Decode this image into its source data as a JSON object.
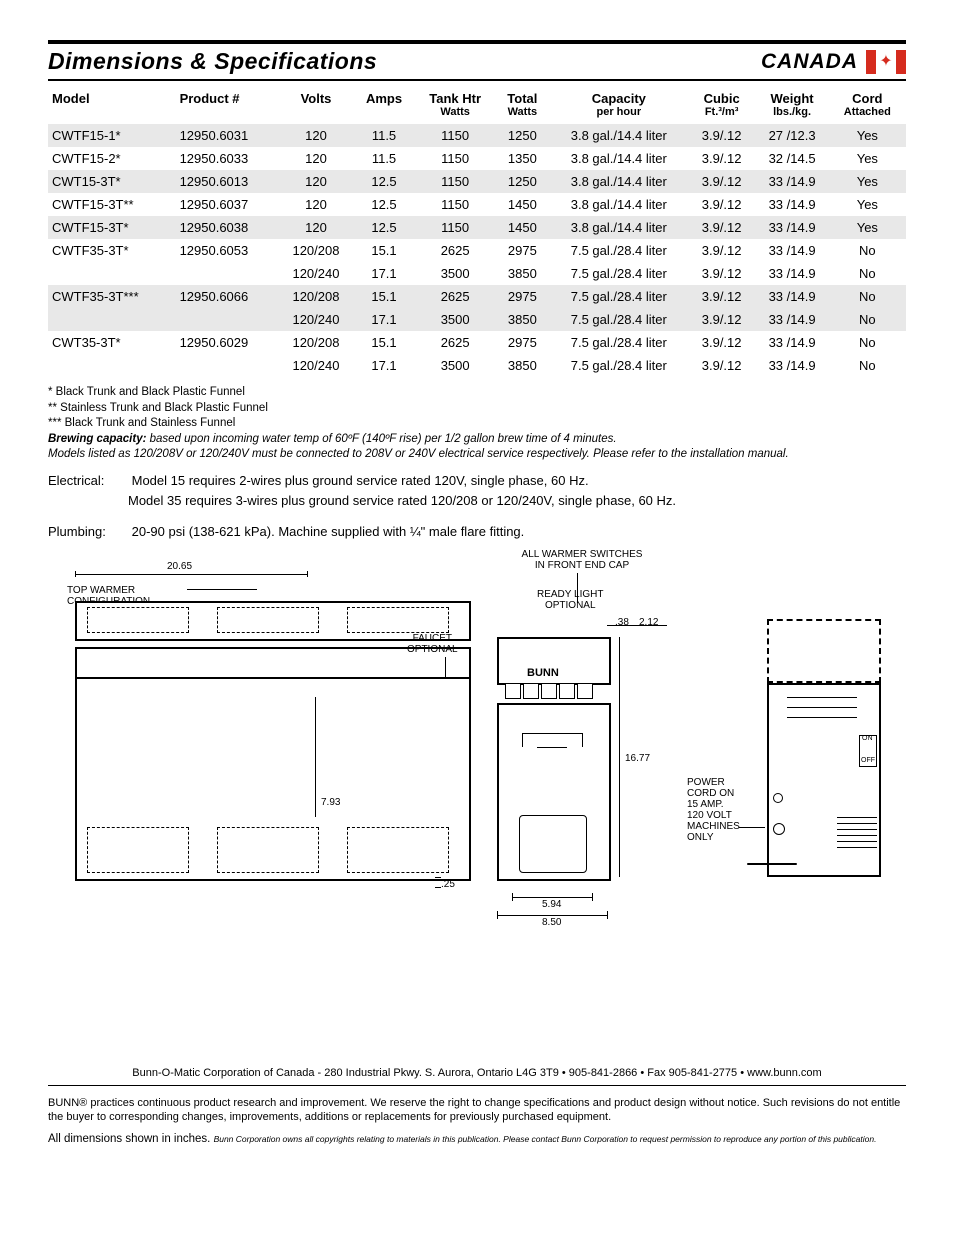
{
  "header": {
    "title": "Dimensions & Specifications",
    "region": "CANADA"
  },
  "table": {
    "columns": [
      {
        "key": "model",
        "label": "Model",
        "sub": "",
        "align": "left"
      },
      {
        "key": "product",
        "label": "Product #",
        "sub": "",
        "align": "left"
      },
      {
        "key": "volts",
        "label": "Volts",
        "sub": "",
        "align": "center"
      },
      {
        "key": "amps",
        "label": "Amps",
        "sub": "",
        "align": "center"
      },
      {
        "key": "tankhtr",
        "label": "Tank Htr",
        "sub": "Watts",
        "align": "center"
      },
      {
        "key": "total",
        "label": "Total",
        "sub": "Watts",
        "align": "center"
      },
      {
        "key": "capacity",
        "label": "Capacity",
        "sub": "per hour",
        "align": "center"
      },
      {
        "key": "cubic",
        "label": "Cubic",
        "sub": "Ft.³/m³",
        "align": "center"
      },
      {
        "key": "weight",
        "label": "Weight",
        "sub": "lbs./kg.",
        "align": "center"
      },
      {
        "key": "cord",
        "label": "Cord",
        "sub": "Attached",
        "align": "center"
      }
    ],
    "rows": [
      {
        "shade": true,
        "cells": [
          "CWTF15-1*",
          "12950.6031",
          "120",
          "11.5",
          "1150",
          "1250",
          "3.8 gal./14.4 liter",
          "3.9/.12",
          "27 /12.3",
          "Yes"
        ]
      },
      {
        "shade": false,
        "cells": [
          "CWTF15-2*",
          "12950.6033",
          "120",
          "11.5",
          "1150",
          "1350",
          "3.8 gal./14.4 liter",
          "3.9/.12",
          "32 /14.5",
          "Yes"
        ]
      },
      {
        "shade": true,
        "cells": [
          "CWT15-3T*",
          "12950.6013",
          "120",
          "12.5",
          "1150",
          "1250",
          "3.8 gal./14.4 liter",
          "3.9/.12",
          "33 /14.9",
          "Yes"
        ]
      },
      {
        "shade": false,
        "cells": [
          "CWTF15-3T**",
          "12950.6037",
          "120",
          "12.5",
          "1150",
          "1450",
          "3.8 gal./14.4 liter",
          "3.9/.12",
          "33 /14.9",
          "Yes"
        ]
      },
      {
        "shade": true,
        "cells": [
          "CWTF15-3T*",
          "12950.6038",
          "120",
          "12.5",
          "1150",
          "1450",
          "3.8 gal./14.4 liter",
          "3.9/.12",
          "33 /14.9",
          "Yes"
        ]
      },
      {
        "shade": false,
        "cells": [
          "CWTF35-3T*",
          "12950.6053",
          "120/208",
          "15.1",
          "2625",
          "2975",
          "7.5 gal./28.4 liter",
          "3.9/.12",
          "33 /14.9",
          "No"
        ]
      },
      {
        "shade": false,
        "cells": [
          "",
          "",
          "120/240",
          "17.1",
          "3500",
          "3850",
          "7.5 gal./28.4 liter",
          "3.9/.12",
          "33 /14.9",
          "No"
        ]
      },
      {
        "shade": true,
        "cells": [
          "CWTF35-3T***",
          "12950.6066",
          "120/208",
          "15.1",
          "2625",
          "2975",
          "7.5 gal./28.4 liter",
          "3.9/.12",
          "33 /14.9",
          "No"
        ]
      },
      {
        "shade": true,
        "cells": [
          "",
          "",
          "120/240",
          "17.1",
          "3500",
          "3850",
          "7.5 gal./28.4 liter",
          "3.9/.12",
          "33 /14.9",
          "No"
        ]
      },
      {
        "shade": false,
        "cells": [
          "CWT35-3T*",
          "12950.6029",
          "120/208",
          "15.1",
          "2625",
          "2975",
          "7.5 gal./28.4 liter",
          "3.9/.12",
          "33 /14.9",
          "No"
        ]
      },
      {
        "shade": false,
        "cells": [
          "",
          "",
          "120/240",
          "17.1",
          "3500",
          "3850",
          "7.5 gal./28.4 liter",
          "3.9/.12",
          "33 /14.9",
          "No"
        ]
      }
    ]
  },
  "footnotes": {
    "star1": "* Black Trunk and Black Plastic Funnel",
    "star2": "** Stainless Trunk and Black Plastic Funnel",
    "star3": "*** Black Trunk and Stainless Funnel",
    "brew_label": "Brewing capacity:",
    "brew_text": "based upon incoming water temp of 60ºF (140ºF rise) per 1/2 gallon brew time of 4 minutes.",
    "models_note": "Models listed as 120/208V or 120/240V must be connected to 208V or 240V electrical service respectively. Please refer to the installation manual."
  },
  "body": {
    "electrical_label": "Electrical:",
    "electrical_l1": "Model 15 requires 2-wires plus ground service rated 120V, single phase, 60 Hz.",
    "electrical_l2": "Model 35 requires 3-wires plus ground service rated 120/208 or 120/240V, single phase, 60 Hz.",
    "plumbing_label": "Plumbing:",
    "plumbing_text": "20-90 psi (138-621 kPa). Machine supplied with ¼\" male flare fitting."
  },
  "diagram": {
    "top_warmer": "TOP WARMER CONFIGURATION",
    "faucet": "FAUCET\nOPTIONAL",
    "all_warmer": "ALL WARMER SWITCHES\nIN FRONT END CAP",
    "ready": "READY LIGHT\nOPTIONAL",
    "bunn": "BUNN",
    "power_cord": "POWER\nCORD ON\n15 AMP.\n120 VOLT\nMACHINES\nONLY",
    "d2065": "20.65",
    "d793": "7.93",
    "d25": ".25",
    "d594": "5.94",
    "d850": "8.50",
    "d38": ".38",
    "d212": "2.12",
    "d1677": "16.77",
    "on": "ON",
    "off": "OFF"
  },
  "footer": {
    "address": "Bunn-O-Matic Corporation of Canada - 280 Industrial Pkwy. S. Aurora, Ontario  L4G 3T9 • 905-841-2866 • Fax 905-841-2775 • www.bunn.com",
    "disclaimer": "BUNN® practices continuous product research and improvement. We reserve the right to change specifications and product design without notice. Such revisions do not entitle the buyer to corresponding changes, improvements, additions or replacements for previously purchased equipment.",
    "dims": "All dimensions shown in inches.",
    "copyright": "Bunn Corporation owns all copyrights relating to materials in this publication.  Please contact Bunn Corporation to request permission to reproduce any portion of this publication."
  }
}
